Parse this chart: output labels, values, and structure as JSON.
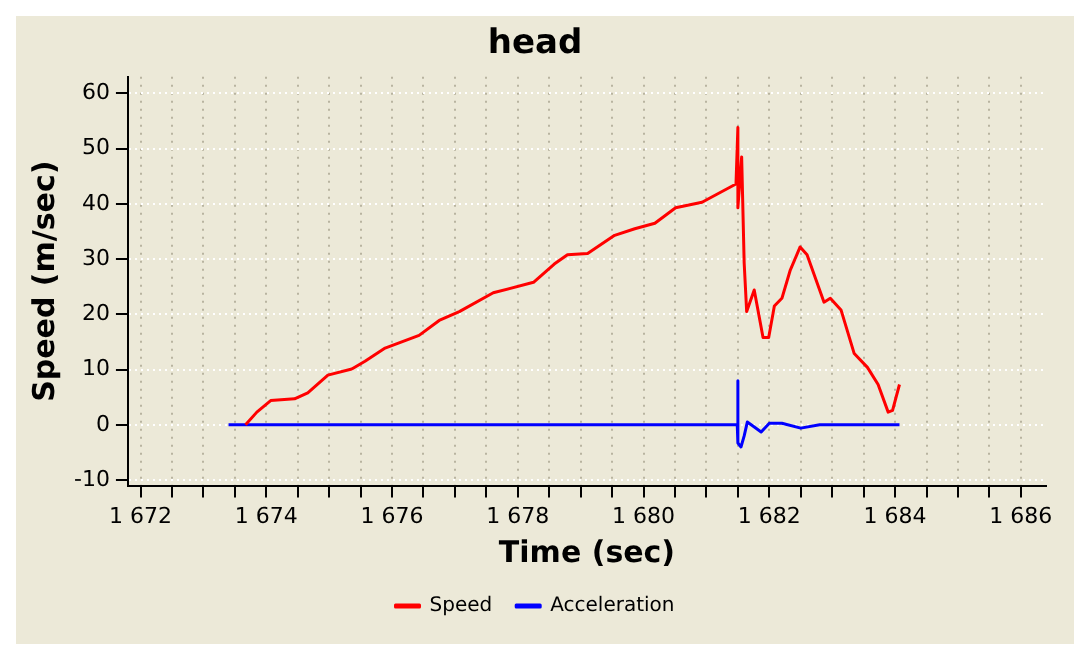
{
  "chart_data": {
    "type": "line",
    "title": "head",
    "xlabel": "Time (sec)",
    "ylabel": "Speed (m/sec)",
    "xlim": [
      1671.8,
      1686.4
    ],
    "ylim": [
      -11,
      63
    ],
    "xticks": [
      {
        "value": 1672,
        "label": "1 672"
      },
      {
        "value": 1672.5,
        "label": null
      },
      {
        "value": 1673,
        "label": null
      },
      {
        "value": 1673.5,
        "label": null
      },
      {
        "value": 1674,
        "label": "1 674"
      },
      {
        "value": 1674.5,
        "label": null
      },
      {
        "value": 1675,
        "label": null
      },
      {
        "value": 1675.5,
        "label": null
      },
      {
        "value": 1676,
        "label": "1 676"
      },
      {
        "value": 1676.5,
        "label": null
      },
      {
        "value": 1677,
        "label": null
      },
      {
        "value": 1677.5,
        "label": null
      },
      {
        "value": 1678,
        "label": "1 678"
      },
      {
        "value": 1678.5,
        "label": null
      },
      {
        "value": 1679,
        "label": null
      },
      {
        "value": 1679.5,
        "label": null
      },
      {
        "value": 1680,
        "label": "1 680"
      },
      {
        "value": 1680.5,
        "label": null
      },
      {
        "value": 1681,
        "label": null
      },
      {
        "value": 1681.5,
        "label": null
      },
      {
        "value": 1682,
        "label": "1 682"
      },
      {
        "value": 1682.5,
        "label": null
      },
      {
        "value": 1683,
        "label": null
      },
      {
        "value": 1683.5,
        "label": null
      },
      {
        "value": 1684,
        "label": "1 684"
      },
      {
        "value": 1684.5,
        "label": null
      },
      {
        "value": 1685,
        "label": null
      },
      {
        "value": 1685.5,
        "label": null
      },
      {
        "value": 1686,
        "label": "1 686"
      }
    ],
    "yticks": [
      -10,
      0,
      10,
      20,
      30,
      40,
      50,
      60
    ],
    "grid": true,
    "legend": "bottom",
    "marker": "none",
    "line_style": "solid",
    "series": [
      {
        "name": "Speed",
        "color": "#ff0000",
        "x": [
          1673.67,
          1673.85,
          1674.07,
          1674.45,
          1674.66,
          1674.98,
          1675.36,
          1675.57,
          1675.89,
          1676.43,
          1676.75,
          1677.07,
          1677.61,
          1678.25,
          1678.58,
          1678.79,
          1679.11,
          1679.54,
          1679.86,
          1680.18,
          1680.51,
          1680.93,
          1681.47,
          1681.5,
          1681.5,
          1681.56,
          1681.6,
          1681.64,
          1681.76,
          1681.9,
          1681.99,
          1682.08,
          1682.2,
          1682.33,
          1682.49,
          1682.6,
          1682.87,
          1682.97,
          1683.14,
          1683.35,
          1683.56,
          1683.73,
          1683.89,
          1683.96,
          1684.07
        ],
        "values": [
          0,
          2.3,
          4.4,
          4.7,
          5.8,
          9,
          10.1,
          11.5,
          13.9,
          16.2,
          18.9,
          20.5,
          23.9,
          25.8,
          29.1,
          30.8,
          31,
          34.3,
          35.5,
          36.5,
          39.3,
          40.3,
          43.6,
          53.8,
          39.3,
          48.5,
          29.3,
          20.5,
          24.4,
          15.8,
          15.8,
          21.5,
          22.9,
          27.9,
          32.2,
          30.8,
          22.2,
          22.9,
          20.8,
          12.9,
          10.4,
          7.3,
          2.3,
          2.6,
          7.3
        ]
      },
      {
        "name": "Acceleration",
        "color": "#0000ff",
        "x": [
          1673.4,
          1681.49,
          1681.5,
          1681.5,
          1681.55,
          1681.6,
          1681.65,
          1681.75,
          1681.87,
          1682.0,
          1682.2,
          1682.5,
          1682.8,
          1683.2,
          1684.07
        ],
        "values": [
          0,
          0,
          8,
          -3.3,
          -4,
          -2,
          0.5,
          -0.3,
          -1.3,
          0.3,
          0.3,
          -0.6,
          0,
          0,
          0
        ]
      }
    ]
  }
}
